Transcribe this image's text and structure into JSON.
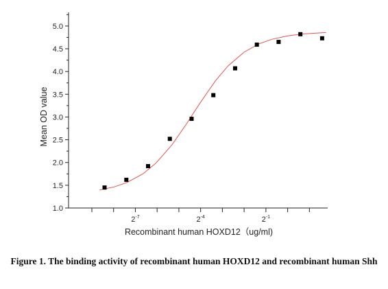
{
  "chart_data": {
    "type": "scatter",
    "x_label": "Recombinant human HOXD12（ug/ml)",
    "y_label": "Mean OD value",
    "caption": "Figure 1. The binding activity of recombinant human HOXD12 and recombinant human Shh",
    "log_x": true,
    "log_base": 2,
    "xlim": [
      0.00093,
      3.58
    ],
    "xticks": [
      {
        "value": 0.0078125,
        "label": "2",
        "sup": "-7"
      },
      {
        "value": 0.0625,
        "label": "2",
        "sup": "-4"
      },
      {
        "value": 0.5,
        "label": "2",
        "sup": "-1"
      }
    ],
    "xminor_ticks": [
      0.001953125,
      0.00390625,
      0.015625,
      0.03125,
      0.125,
      0.25,
      1,
      2
    ],
    "ylim": [
      1.0,
      5.3
    ],
    "yticks": [
      {
        "value": 1,
        "label": "1.0"
      },
      {
        "value": 1.5,
        "label": "1.5"
      },
      {
        "value": 2,
        "label": "2.0"
      },
      {
        "value": 2.5,
        "label": "2.5"
      },
      {
        "value": 3,
        "label": "3.0"
      },
      {
        "value": 3.5,
        "label": "3.5"
      },
      {
        "value": 4,
        "label": "4.0"
      },
      {
        "value": 4.5,
        "label": "4.5"
      },
      {
        "value": 5,
        "label": "5.0"
      }
    ],
    "yminor_ticks": [
      1.25,
      1.75,
      2.25,
      2.75,
      3.25,
      3.75,
      4.25,
      4.75,
      5.25
    ],
    "series": [
      {
        "color": "#000000",
        "x": [
          0.0029296875,
          0.005859375,
          0.01171875,
          0.0234375,
          0.046875,
          0.09375,
          0.1875,
          0.375,
          0.75,
          1.5,
          3
        ],
        "values": [
          1.45,
          1.62,
          1.92,
          2.52,
          2.96,
          3.48,
          4.07,
          4.59,
          4.65,
          4.82,
          4.73
        ]
      }
    ],
    "fit": {
      "color": "#e8504f",
      "x": [
        0.0025,
        0.004,
        0.006,
        0.01,
        0.015,
        0.025,
        0.04,
        0.06,
        0.1,
        0.15,
        0.25,
        0.4,
        0.6,
        1,
        1.6,
        3.4
      ],
      "values": [
        1.396,
        1.465,
        1.561,
        1.753,
        1.984,
        2.385,
        2.852,
        3.285,
        3.794,
        4.124,
        4.427,
        4.607,
        4.707,
        4.784,
        4.825,
        4.857
      ]
    }
  }
}
